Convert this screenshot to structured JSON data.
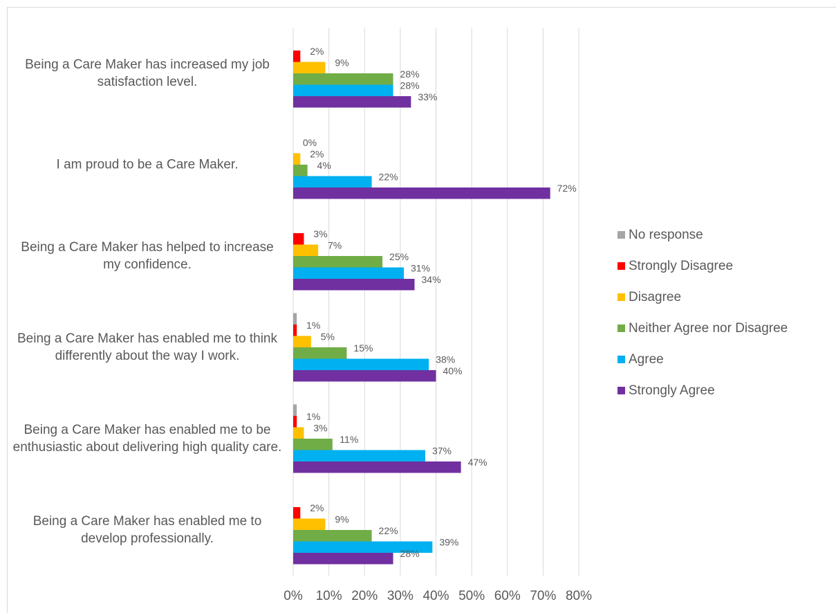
{
  "chart_data": {
    "type": "bar",
    "orientation": "horizontal",
    "categories": [
      "Being a Care Maker has increased my job satisfaction level.",
      "I am proud to be a Care Maker.",
      "Being a Care Maker has helped to increase my confidence.",
      "Being a Care Maker has enabled me to think differently about the way I work.",
      "Being a Care Maker has enabled me to be enthusiastic about delivering high quality care.",
      "Being a Care Maker has enabled me to develop professionally."
    ],
    "series": [
      {
        "name": "No response",
        "color": "#a5a5a5",
        "values": [
          0,
          0,
          0,
          1,
          1,
          0
        ]
      },
      {
        "name": "Strongly Disagree",
        "color": "#ff0000",
        "values": [
          2,
          0,
          3,
          1,
          1,
          2
        ],
        "value_labels": [
          "2%",
          "0%",
          "3%",
          "1%",
          "1%",
          "2%"
        ]
      },
      {
        "name": "Disagree",
        "color": "#ffc000",
        "values": [
          9,
          2,
          7,
          5,
          3,
          9
        ],
        "value_labels": [
          "9%",
          "2%",
          "7%",
          "5%",
          "3%",
          "9%"
        ]
      },
      {
        "name": "Neither Agree nor Disagree",
        "color": "#70ad47",
        "values": [
          28,
          4,
          25,
          15,
          11,
          22
        ],
        "value_labels": [
          "28%",
          "4%",
          "25%",
          "15%",
          "11%",
          "22%"
        ]
      },
      {
        "name": "Agree",
        "color": "#00b0f0",
        "values": [
          28,
          22,
          31,
          38,
          37,
          39
        ],
        "value_labels": [
          "28%",
          "22%",
          "31%",
          "38%",
          "37%",
          "39%"
        ]
      },
      {
        "name": "Strongly Agree",
        "color": "#7030a0",
        "values": [
          33,
          72,
          34,
          40,
          47,
          28
        ],
        "value_labels": [
          "33%",
          "72%",
          "34%",
          "40%",
          "47%",
          "28%"
        ]
      }
    ],
    "xlim": [
      0,
      80
    ],
    "xticks": [
      {
        "value": 0,
        "label": "0%"
      },
      {
        "value": 10,
        "label": "10%"
      },
      {
        "value": 20,
        "label": "20%"
      },
      {
        "value": 30,
        "label": "30%"
      },
      {
        "value": 40,
        "label": "40%"
      },
      {
        "value": 50,
        "label": "50%"
      },
      {
        "value": 60,
        "label": "60%"
      },
      {
        "value": 70,
        "label": "70%"
      },
      {
        "value": 80,
        "label": "80%"
      }
    ],
    "grid": true,
    "legend": "right"
  }
}
